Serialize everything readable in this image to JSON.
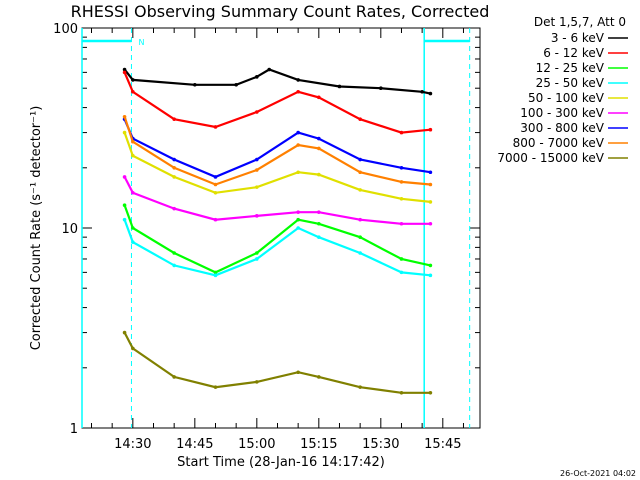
{
  "chart_data": {
    "type": "line",
    "title": "RHESSI Observing Summary Count Rates, Corrected",
    "xlabel": "Start Time (28-Jan-16 14:17:42)",
    "ylabel": "Corrected Count Rate (s⁻¹ detector⁻¹)",
    "yscale": "log",
    "ylim": [
      1,
      100
    ],
    "ytick_labels": [
      "1",
      "10",
      "100"
    ],
    "xlim": [
      "14:17:42",
      "15:54:00"
    ],
    "xtick_labels": [
      "14:30",
      "14:45",
      "15:00",
      "15:15",
      "15:30",
      "15:45"
    ],
    "grid": false,
    "legend": {
      "header": "Det 1,5,7, Att 0",
      "placement": "top-right outside"
    },
    "series": [
      {
        "name": "3 - 6 keV",
        "color": "#000000",
        "x": [
          "14:28",
          "14:30",
          "14:45",
          "14:55",
          "15:00",
          "15:03",
          "15:10",
          "15:20",
          "15:30",
          "15:40",
          "15:42"
        ],
        "values": [
          62,
          55,
          52,
          52,
          57,
          62,
          55,
          51,
          50,
          48,
          47
        ]
      },
      {
        "name": "6 - 12 keV",
        "color": "#ff0000",
        "x": [
          "14:28",
          "14:30",
          "14:40",
          "14:50",
          "15:00",
          "15:10",
          "15:15",
          "15:25",
          "15:35",
          "15:42"
        ],
        "values": [
          60,
          48,
          35,
          32,
          38,
          48,
          45,
          35,
          30,
          31
        ]
      },
      {
        "name": "12 - 25 keV",
        "color": "#00ff00",
        "x": [
          "14:28",
          "14:30",
          "14:40",
          "14:50",
          "15:00",
          "15:10",
          "15:15",
          "15:25",
          "15:35",
          "15:42"
        ],
        "values": [
          13,
          10,
          7.5,
          6,
          7.5,
          11,
          10.5,
          9,
          7,
          6.5
        ]
      },
      {
        "name": "25 - 50 keV",
        "color": "#00ffff",
        "x": [
          "14:28",
          "14:30",
          "14:40",
          "14:50",
          "15:00",
          "15:10",
          "15:15",
          "15:25",
          "15:35",
          "15:42"
        ],
        "values": [
          11,
          8.5,
          6.5,
          5.8,
          7,
          10,
          9,
          7.5,
          6,
          5.8
        ]
      },
      {
        "name": "50 - 100 keV",
        "color": "#e0e000",
        "x": [
          "14:28",
          "14:30",
          "14:40",
          "14:50",
          "15:00",
          "15:10",
          "15:15",
          "15:25",
          "15:35",
          "15:42"
        ],
        "values": [
          30,
          23,
          18,
          15,
          16,
          19,
          18.5,
          15.5,
          14,
          13.5
        ]
      },
      {
        "name": "100 - 300 keV",
        "color": "#ff00ff",
        "x": [
          "14:28",
          "14:30",
          "14:40",
          "14:50",
          "15:00",
          "15:10",
          "15:15",
          "15:25",
          "15:35",
          "15:42"
        ],
        "values": [
          18,
          15,
          12.5,
          11,
          11.5,
          12,
          12,
          11,
          10.5,
          10.5
        ]
      },
      {
        "name": "300 - 800 keV",
        "color": "#0000ff",
        "x": [
          "14:28",
          "14:30",
          "14:40",
          "14:50",
          "15:00",
          "15:10",
          "15:15",
          "15:25",
          "15:35",
          "15:42"
        ],
        "values": [
          35,
          28,
          22,
          18,
          22,
          30,
          28,
          22,
          20,
          19
        ]
      },
      {
        "name": "800 - 7000 keV",
        "color": "#ff8000",
        "x": [
          "14:28",
          "14:30",
          "14:40",
          "14:50",
          "15:00",
          "15:10",
          "15:15",
          "15:25",
          "15:35",
          "15:42"
        ],
        "values": [
          36,
          27,
          20,
          16.5,
          19.5,
          26,
          25,
          19,
          17,
          16.5
        ]
      },
      {
        "name": "7000 - 15000 keV",
        "color": "#808000",
        "x": [
          "14:28",
          "14:30",
          "14:40",
          "14:50",
          "15:00",
          "15:10",
          "15:15",
          "15:25",
          "15:35",
          "15:42"
        ],
        "values": [
          3,
          2.5,
          1.8,
          1.6,
          1.7,
          1.9,
          1.8,
          1.6,
          1.5,
          1.5
        ]
      }
    ],
    "annotations": {
      "flag_label": "N",
      "timestamp": "26-Oct-2021 04:02"
    }
  },
  "colors": {
    "background": "#ffffff",
    "axis": "#000000",
    "flag": "#00ffff"
  }
}
